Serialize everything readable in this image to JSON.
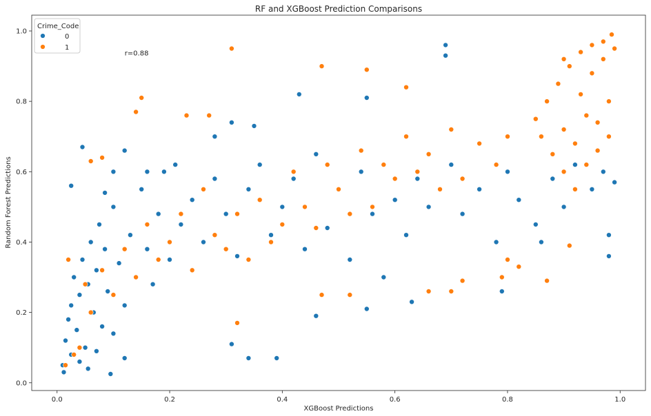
{
  "chart_data": {
    "type": "scatter",
    "title": "RF and XGBoost Prediction Comparisons",
    "xlabel": "XGBoost Predictions",
    "ylabel": "Random Forest Predictions",
    "xlim": [
      -0.045,
      1.045
    ],
    "ylim": [
      -0.022,
      1.045
    ],
    "xticks": [
      0.0,
      0.2,
      0.4,
      0.6,
      0.8,
      1.0
    ],
    "xtick_labels": [
      "0.0",
      "0.2",
      "0.4",
      "0.6",
      "0.8",
      "1.0"
    ],
    "yticks": [
      0.0,
      0.2,
      0.4,
      0.6,
      0.8,
      1.0
    ],
    "ytick_labels": [
      "0.0",
      "0.2",
      "0.4",
      "0.6",
      "0.8",
      "1.0"
    ],
    "grid": false,
    "legend": {
      "title": "Crime_Code",
      "placement": "top-left",
      "entries": [
        "0",
        "1"
      ]
    },
    "annotation": {
      "text": "r=0.88",
      "x": 0.12,
      "y": 0.93
    },
    "series": [
      {
        "name": "0",
        "color": "#1f77b4",
        "points": [
          [
            0.01,
            0.05
          ],
          [
            0.015,
            0.12
          ],
          [
            0.02,
            0.18
          ],
          [
            0.025,
            0.22
          ],
          [
            0.03,
            0.3
          ],
          [
            0.035,
            0.15
          ],
          [
            0.04,
            0.25
          ],
          [
            0.045,
            0.35
          ],
          [
            0.05,
            0.1
          ],
          [
            0.055,
            0.28
          ],
          [
            0.06,
            0.4
          ],
          [
            0.065,
            0.2
          ],
          [
            0.07,
            0.32
          ],
          [
            0.075,
            0.45
          ],
          [
            0.08,
            0.16
          ],
          [
            0.085,
            0.38
          ],
          [
            0.09,
            0.26
          ],
          [
            0.1,
            0.5
          ],
          [
            0.11,
            0.34
          ],
          [
            0.12,
            0.22
          ],
          [
            0.13,
            0.42
          ],
          [
            0.14,
            0.3
          ],
          [
            0.15,
            0.55
          ],
          [
            0.16,
            0.38
          ],
          [
            0.17,
            0.28
          ],
          [
            0.18,
            0.48
          ],
          [
            0.19,
            0.6
          ],
          [
            0.2,
            0.35
          ],
          [
            0.22,
            0.45
          ],
          [
            0.24,
            0.52
          ],
          [
            0.26,
            0.4
          ],
          [
            0.28,
            0.58
          ],
          [
            0.3,
            0.48
          ],
          [
            0.32,
            0.36
          ],
          [
            0.34,
            0.55
          ],
          [
            0.36,
            0.62
          ],
          [
            0.38,
            0.42
          ],
          [
            0.4,
            0.5
          ],
          [
            0.42,
            0.58
          ],
          [
            0.44,
            0.38
          ],
          [
            0.46,
            0.65
          ],
          [
            0.48,
            0.44
          ],
          [
            0.5,
            0.55
          ],
          [
            0.52,
            0.35
          ],
          [
            0.54,
            0.6
          ],
          [
            0.56,
            0.48
          ],
          [
            0.58,
            0.3
          ],
          [
            0.6,
            0.52
          ],
          [
            0.62,
            0.42
          ],
          [
            0.64,
            0.58
          ],
          [
            0.66,
            0.5
          ],
          [
            0.7,
            0.62
          ],
          [
            0.72,
            0.48
          ],
          [
            0.75,
            0.55
          ],
          [
            0.78,
            0.4
          ],
          [
            0.8,
            0.6
          ],
          [
            0.82,
            0.52
          ],
          [
            0.85,
            0.45
          ],
          [
            0.88,
            0.58
          ],
          [
            0.9,
            0.5
          ],
          [
            0.92,
            0.62
          ],
          [
            0.95,
            0.55
          ],
          [
            0.97,
            0.6
          ],
          [
            0.98,
            0.42
          ],
          [
            0.012,
            0.03
          ],
          [
            0.025,
            0.08
          ],
          [
            0.04,
            0.06
          ],
          [
            0.055,
            0.04
          ],
          [
            0.07,
            0.09
          ],
          [
            0.095,
            0.025
          ],
          [
            0.1,
            0.14
          ],
          [
            0.12,
            0.07
          ],
          [
            0.025,
            0.56
          ],
          [
            0.045,
            0.67
          ],
          [
            0.085,
            0.54
          ],
          [
            0.1,
            0.6
          ],
          [
            0.12,
            0.66
          ],
          [
            0.16,
            0.6
          ],
          [
            0.21,
            0.62
          ],
          [
            0.28,
            0.7
          ],
          [
            0.31,
            0.74
          ],
          [
            0.35,
            0.73
          ],
          [
            0.43,
            0.82
          ],
          [
            0.55,
            0.81
          ],
          [
            0.69,
            0.96
          ],
          [
            0.69,
            0.93
          ],
          [
            0.31,
            0.11
          ],
          [
            0.34,
            0.07
          ],
          [
            0.39,
            0.07
          ],
          [
            0.46,
            0.19
          ],
          [
            0.55,
            0.21
          ],
          [
            0.63,
            0.23
          ],
          [
            0.79,
            0.26
          ],
          [
            0.98,
            0.36
          ],
          [
            0.99,
            0.57
          ],
          [
            0.86,
            0.4
          ]
        ]
      },
      {
        "name": "1",
        "color": "#ff7f0e",
        "points": [
          [
            0.85,
            0.75
          ],
          [
            0.86,
            0.7
          ],
          [
            0.87,
            0.8
          ],
          [
            0.88,
            0.65
          ],
          [
            0.89,
            0.85
          ],
          [
            0.9,
            0.72
          ],
          [
            0.91,
            0.9
          ],
          [
            0.92,
            0.68
          ],
          [
            0.93,
            0.82
          ],
          [
            0.94,
            0.76
          ],
          [
            0.95,
            0.88
          ],
          [
            0.96,
            0.74
          ],
          [
            0.97,
            0.92
          ],
          [
            0.98,
            0.8
          ],
          [
            0.99,
            0.95
          ],
          [
            0.9,
            0.6
          ],
          [
            0.92,
            0.55
          ],
          [
            0.94,
            0.62
          ],
          [
            0.96,
            0.66
          ],
          [
            0.98,
            0.7
          ],
          [
            0.8,
            0.7
          ],
          [
            0.78,
            0.62
          ],
          [
            0.75,
            0.68
          ],
          [
            0.72,
            0.58
          ],
          [
            0.7,
            0.72
          ],
          [
            0.68,
            0.55
          ],
          [
            0.66,
            0.65
          ],
          [
            0.64,
            0.6
          ],
          [
            0.62,
            0.7
          ],
          [
            0.6,
            0.58
          ],
          [
            0.58,
            0.62
          ],
          [
            0.56,
            0.5
          ],
          [
            0.54,
            0.66
          ],
          [
            0.52,
            0.48
          ],
          [
            0.5,
            0.55
          ],
          [
            0.48,
            0.62
          ],
          [
            0.46,
            0.44
          ],
          [
            0.44,
            0.5
          ],
          [
            0.42,
            0.6
          ],
          [
            0.4,
            0.45
          ],
          [
            0.38,
            0.4
          ],
          [
            0.36,
            0.52
          ],
          [
            0.34,
            0.35
          ],
          [
            0.32,
            0.48
          ],
          [
            0.3,
            0.38
          ],
          [
            0.28,
            0.42
          ],
          [
            0.26,
            0.55
          ],
          [
            0.24,
            0.32
          ],
          [
            0.22,
            0.48
          ],
          [
            0.2,
            0.4
          ],
          [
            0.18,
            0.35
          ],
          [
            0.16,
            0.45
          ],
          [
            0.14,
            0.3
          ],
          [
            0.12,
            0.38
          ],
          [
            0.1,
            0.25
          ],
          [
            0.08,
            0.32
          ],
          [
            0.06,
            0.2
          ],
          [
            0.05,
            0.28
          ],
          [
            0.04,
            0.1
          ],
          [
            0.03,
            0.08
          ],
          [
            0.02,
            0.35
          ],
          [
            0.015,
            0.05
          ],
          [
            0.06,
            0.63
          ],
          [
            0.08,
            0.64
          ],
          [
            0.14,
            0.77
          ],
          [
            0.15,
            0.81
          ],
          [
            0.31,
            0.95
          ],
          [
            0.47,
            0.9
          ],
          [
            0.55,
            0.89
          ],
          [
            0.62,
            0.84
          ],
          [
            0.23,
            0.76
          ],
          [
            0.27,
            0.76
          ],
          [
            0.32,
            0.17
          ],
          [
            0.47,
            0.25
          ],
          [
            0.52,
            0.25
          ],
          [
            0.66,
            0.26
          ],
          [
            0.7,
            0.26
          ],
          [
            0.72,
            0.29
          ],
          [
            0.79,
            0.3
          ],
          [
            0.87,
            0.29
          ],
          [
            0.91,
            0.39
          ],
          [
            0.82,
            0.33
          ],
          [
            0.8,
            0.35
          ],
          [
            0.985,
            0.99
          ],
          [
            0.97,
            0.97
          ],
          [
            0.95,
            0.96
          ],
          [
            0.93,
            0.94
          ],
          [
            0.9,
            0.92
          ]
        ]
      }
    ]
  }
}
